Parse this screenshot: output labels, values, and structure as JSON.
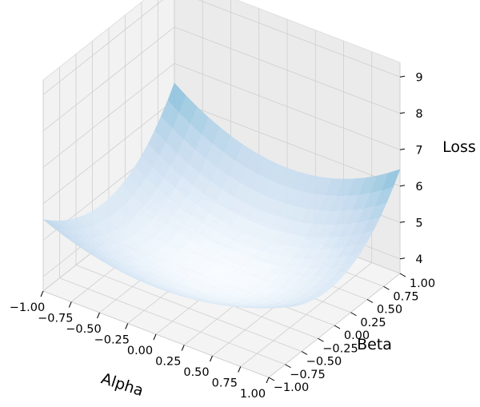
{
  "chart_data": {
    "type": "surface3d",
    "title": "",
    "xlabel": "Alpha",
    "ylabel": "Beta",
    "zlabel": "Loss",
    "xlim": [
      -1.0,
      1.0
    ],
    "ylim": [
      -1.0,
      1.0
    ],
    "zlim": [
      3.6,
      9.4
    ],
    "x_ticks": [
      "−1.00",
      "−0.75",
      "−0.50",
      "−0.25",
      "0.00",
      "0.25",
      "0.50",
      "0.75",
      "1.00"
    ],
    "y_ticks": [
      "−1.00",
      "−0.75",
      "−0.50",
      "−0.25",
      "0.00",
      "0.25",
      "0.50",
      "0.75",
      "1.00"
    ],
    "z_ticks": [
      "4",
      "5",
      "6",
      "7",
      "8",
      "9"
    ],
    "colormap": "Blues",
    "grid": true,
    "corner_values": [
      {
        "alpha": -1.0,
        "beta": -1.0,
        "loss": 7.2
      },
      {
        "alpha": -1.0,
        "beta": 1.0,
        "loss": 9.3
      },
      {
        "alpha": 1.0,
        "beta": -1.0,
        "loss": 5.9
      },
      {
        "alpha": 1.0,
        "beta": 1.0,
        "loss": 7.6
      }
    ],
    "minimum": {
      "alpha": 0.0,
      "beta": 0.0,
      "loss": 3.8
    },
    "surface_model": {
      "c": 3.8,
      "a_alpha": 1.15,
      "b_beta": 1.3,
      "d_cross": 0.0,
      "e_alpha": -0.95,
      "f_beta": 0.85
    }
  }
}
